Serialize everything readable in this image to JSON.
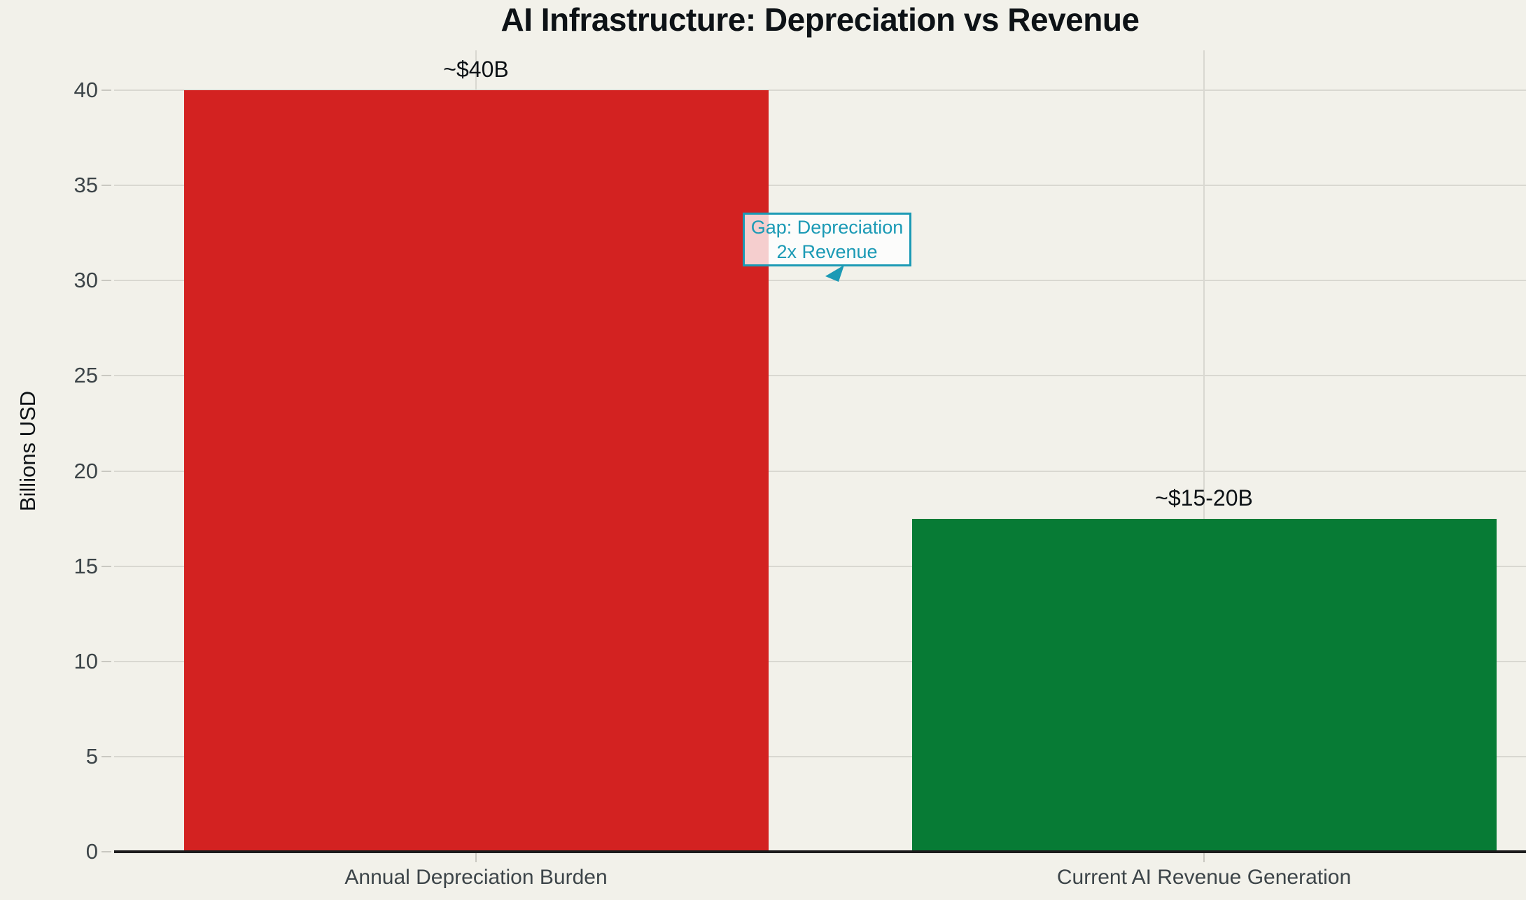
{
  "chart_data": {
    "type": "bar",
    "title": "AI Infrastructure: Depreciation vs Revenue",
    "xlabel": "",
    "ylabel": "Billions USD",
    "categories": [
      "Annual Depreciation Burden",
      "Current AI Revenue Generation"
    ],
    "values": [
      40,
      17.5
    ],
    "value_labels": [
      "~$40B",
      "~$15-20B"
    ],
    "bar_colors": [
      "#d32221",
      "#077b35"
    ],
    "yticks": [
      0,
      5,
      10,
      15,
      20,
      25,
      30,
      35,
      40
    ],
    "ylim": [
      0,
      42.1
    ],
    "grid": true,
    "legend": "none",
    "annotation": {
      "line1": "Gap: Depreciation",
      "line2": "2x Revenue",
      "color": "#1b9ab5"
    }
  },
  "colors": {
    "background": "#f2f1ea",
    "gridline": "#d9d8d1",
    "tick_mark": "#c9c8c1",
    "axis_line": "#1c1c1c",
    "tick_text": "#3d4549",
    "heading_text": "#0d1216",
    "accent_teal": "#1b9ab5",
    "bar_red": "#d32221",
    "bar_green": "#077b35"
  }
}
